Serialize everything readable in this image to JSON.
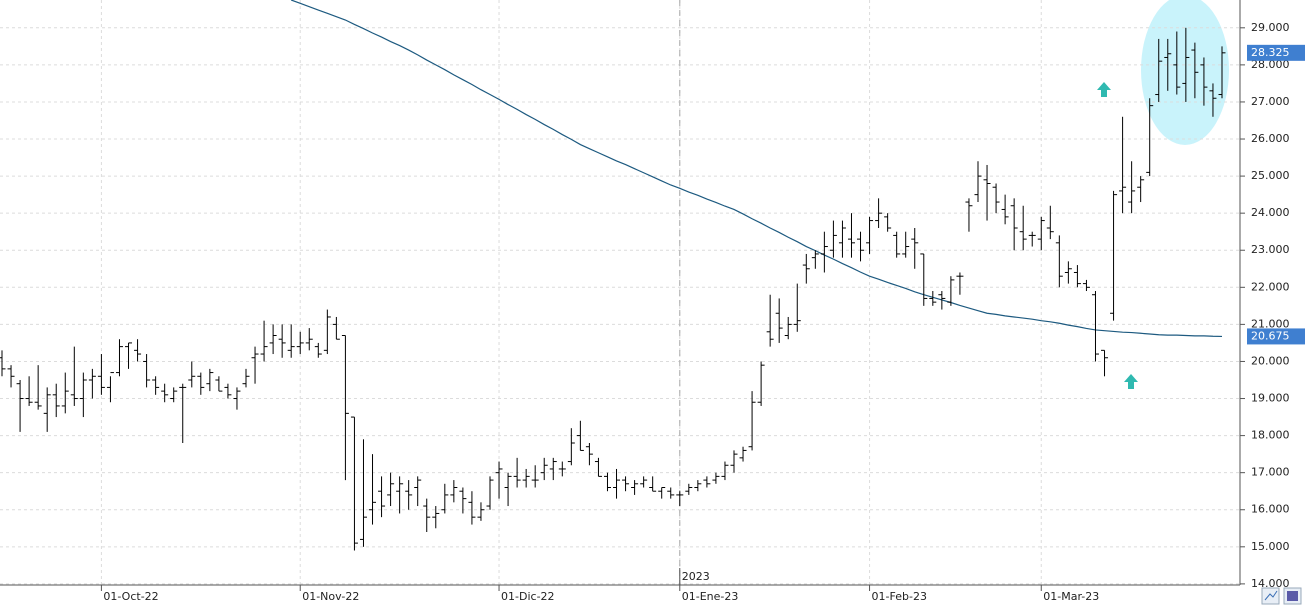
{
  "chart_data": {
    "type": "ohlc",
    "categories": [
      null,
      null,
      null,
      null,
      null,
      null,
      null,
      null,
      null,
      null,
      null,
      "01-Oct-22",
      null,
      null,
      null,
      null,
      null,
      null,
      null,
      null,
      null,
      null,
      null,
      null,
      null,
      null,
      null,
      null,
      null,
      null,
      null,
      null,
      null,
      "01-Nov-22",
      null,
      null,
      null,
      null,
      null,
      null,
      null,
      null,
      null,
      null,
      null,
      null,
      null,
      null,
      null,
      null,
      null,
      null,
      null,
      null,
      null,
      "01-Dic-22",
      null,
      null,
      null,
      null,
      null,
      null,
      null,
      null,
      null,
      null,
      null,
      null,
      null,
      null,
      null,
      null,
      null,
      null,
      null,
      "01-Ene-23",
      null,
      null,
      null,
      null,
      null,
      null,
      null,
      null,
      null,
      null,
      null,
      null,
      null,
      null,
      null,
      null,
      null,
      null,
      null,
      null,
      "01-Feb-23",
      null,
      null,
      null,
      null,
      null,
      null,
      null,
      null,
      null,
      null,
      null,
      null,
      null,
      null,
      null,
      null,
      null,
      null,
      "01-Mar-23",
      null,
      null,
      null,
      null,
      null,
      null,
      null,
      null,
      null,
      null,
      null,
      null,
      null,
      null,
      null,
      null,
      null,
      null,
      null,
      null
    ],
    "year_label": "2023",
    "ohlc": {
      "color": "#000000",
      "open": [
        20.1,
        19.8,
        19.4,
        19.0,
        18.9,
        18.6,
        19.1,
        18.8,
        19.1,
        19.0,
        19.5,
        19.6,
        19.3,
        19.7,
        20.4,
        20.3,
        20.0,
        19.5,
        19.2,
        19.0,
        19.3,
        19.5,
        19.6,
        19.4,
        19.5,
        19.3,
        19.0,
        19.4,
        20.1,
        20.2,
        20.5,
        20.6,
        20.3,
        20.4,
        20.5,
        20.4,
        20.3,
        21.0,
        20.7,
        18.5,
        15.2,
        16.0,
        16.5,
        16.4,
        16.5,
        16.5,
        16.6,
        16.1,
        15.8,
        16.0,
        16.4,
        16.5,
        16.2,
        15.8,
        16.1,
        17.0,
        16.6,
        16.9,
        16.8,
        16.8,
        17.0,
        17.1,
        17.1,
        17.3,
        18.0,
        17.7,
        17.3,
        16.9,
        16.6,
        16.8,
        16.6,
        16.7,
        16.6,
        16.5,
        16.5,
        16.4,
        16.5,
        16.6,
        16.8,
        16.8,
        16.9,
        17.2,
        17.4,
        17.7,
        18.9,
        20.8,
        21.3,
        20.7,
        21.0,
        22.6,
        22.8,
        22.9,
        23.0,
        23.2,
        23.3,
        23.3,
        23.2,
        23.8,
        23.9,
        23.4,
        22.9,
        23.3,
        22.9,
        21.7,
        21.8,
        21.6,
        22.3,
        24.3,
        24.5,
        24.9,
        24.7,
        24.1,
        24.2,
        23.5,
        23.4,
        23.3,
        23.6,
        23.2,
        22.4,
        22.4,
        22.1,
        21.8,
        20.3,
        21.3,
        24.6,
        24.3,
        24.7,
        25.1,
        27.2,
        28.2,
        28.0,
        27.5,
        28.4,
        28.0,
        27.3,
        27.2
      ],
      "high": [
        20.3,
        19.9,
        19.5,
        19.6,
        19.9,
        19.3,
        19.4,
        19.7,
        20.4,
        19.7,
        19.8,
        20.2,
        19.6,
        20.6,
        20.5,
        20.6,
        20.2,
        19.6,
        19.4,
        19.3,
        19.4,
        20.0,
        19.7,
        19.8,
        19.6,
        19.4,
        19.3,
        19.8,
        20.4,
        21.1,
        21.0,
        21.0,
        21.0,
        20.8,
        20.9,
        20.5,
        21.4,
        21.2,
        20.7,
        18.5,
        17.9,
        17.5,
        16.9,
        17.0,
        16.9,
        16.8,
        16.9,
        16.3,
        16.1,
        16.7,
        16.8,
        16.6,
        16.5,
        16.2,
        16.9,
        17.3,
        17.0,
        17.4,
        17.1,
        17.2,
        17.4,
        17.4,
        17.3,
        18.2,
        18.4,
        17.8,
        17.4,
        17.0,
        17.1,
        16.9,
        16.8,
        16.9,
        16.9,
        16.6,
        16.6,
        16.5,
        16.7,
        16.8,
        16.9,
        17.0,
        17.3,
        17.6,
        17.7,
        19.2,
        20.0,
        21.8,
        21.7,
        21.2,
        22.1,
        22.9,
        23.0,
        23.5,
        23.8,
        23.8,
        24.0,
        23.5,
        23.9,
        24.4,
        24.0,
        23.5,
        23.5,
        23.6,
        22.9,
        21.9,
        21.9,
        22.3,
        22.4,
        24.4,
        25.4,
        25.3,
        24.8,
        24.5,
        24.4,
        24.2,
        23.5,
        23.9,
        24.2,
        23.4,
        22.7,
        22.6,
        22.2,
        21.9,
        20.3,
        24.6,
        26.6,
        25.4,
        25.0,
        27.1,
        28.7,
        28.7,
        28.9,
        29.0,
        28.6,
        28.2,
        27.5,
        28.5
      ],
      "low": [
        19.6,
        19.3,
        18.1,
        18.8,
        18.7,
        18.1,
        18.5,
        18.6,
        18.8,
        18.5,
        19.0,
        19.1,
        18.9,
        19.6,
        19.8,
        20.0,
        19.3,
        19.1,
        18.9,
        18.9,
        17.8,
        19.3,
        19.1,
        19.2,
        19.2,
        19.0,
        18.7,
        19.3,
        19.4,
        20.0,
        20.2,
        20.1,
        20.1,
        20.2,
        20.3,
        20.1,
        20.2,
        20.6,
        16.8,
        14.9,
        15.0,
        15.6,
        15.8,
        16.1,
        15.9,
        16.0,
        16.1,
        15.4,
        15.5,
        15.9,
        16.2,
        15.9,
        15.6,
        15.7,
        16.0,
        16.3,
        16.1,
        16.6,
        16.6,
        16.6,
        16.8,
        16.8,
        16.9,
        17.2,
        17.6,
        17.2,
        16.9,
        16.5,
        16.3,
        16.5,
        16.4,
        16.6,
        16.5,
        16.3,
        16.3,
        16.1,
        16.4,
        16.5,
        16.6,
        16.7,
        16.8,
        17.0,
        17.3,
        17.6,
        18.8,
        20.4,
        20.5,
        20.6,
        20.8,
        22.1,
        22.5,
        22.4,
        22.8,
        22.8,
        22.8,
        22.7,
        22.9,
        23.6,
        23.5,
        22.8,
        22.8,
        22.5,
        21.5,
        21.5,
        21.4,
        21.5,
        21.8,
        23.5,
        24.3,
        23.8,
        24.0,
        23.7,
        23.0,
        23.0,
        23.1,
        23.0,
        23.3,
        22.0,
        22.1,
        22.0,
        21.9,
        20.0,
        19.6,
        21.1,
        24.0,
        24.0,
        24.3,
        25.0,
        27.0,
        27.3,
        27.2,
        27.0,
        27.1,
        26.9,
        26.6,
        27.1
      ],
      "close": [
        19.8,
        19.6,
        19.0,
        18.9,
        18.8,
        19.1,
        18.8,
        19.2,
        19.0,
        19.5,
        19.6,
        19.3,
        19.7,
        20.4,
        20.5,
        20.2,
        19.5,
        19.3,
        19.1,
        19.2,
        19.3,
        19.6,
        19.3,
        19.7,
        19.2,
        19.1,
        19.2,
        19.6,
        20.2,
        20.4,
        20.7,
        20.5,
        20.4,
        20.5,
        20.6,
        20.2,
        21.2,
        20.6,
        18.6,
        15.1,
        15.8,
        16.2,
        16.1,
        16.7,
        16.7,
        16.4,
        16.8,
        15.8,
        15.9,
        16.4,
        16.6,
        16.3,
        15.8,
        16.0,
        16.8,
        17.1,
        16.9,
        16.8,
        16.9,
        16.8,
        17.2,
        17.3,
        17.1,
        17.8,
        17.6,
        17.5,
        16.9,
        16.6,
        16.8,
        16.7,
        16.7,
        16.8,
        16.5,
        16.6,
        16.4,
        16.4,
        16.6,
        16.7,
        16.7,
        16.9,
        17.2,
        17.5,
        17.6,
        18.9,
        19.9,
        20.6,
        20.9,
        21.0,
        21.1,
        22.5,
        22.9,
        23.1,
        23.4,
        23.6,
        23.2,
        23.0,
        23.8,
        24.0,
        23.6,
        22.9,
        23.1,
        23.2,
        21.7,
        21.6,
        21.7,
        22.2,
        22.3,
        24.2,
        25.0,
        24.8,
        24.3,
        23.9,
        23.6,
        23.3,
        23.4,
        23.8,
        23.5,
        22.3,
        22.5,
        22.1,
        22.0,
        20.2,
        20.1,
        24.5,
        24.7,
        24.6,
        24.9,
        26.9,
        28.1,
        28.3,
        27.4,
        28.2,
        27.8,
        27.4,
        27.1,
        28.325
      ]
    },
    "moving_average": {
      "color": "#1d5a80",
      "values": [
        null,
        null,
        null,
        null,
        null,
        null,
        null,
        null,
        null,
        null,
        null,
        null,
        null,
        null,
        null,
        null,
        null,
        null,
        null,
        null,
        null,
        null,
        null,
        null,
        null,
        null,
        null,
        null,
        null,
        null,
        null,
        null,
        29.75,
        29.66,
        29.57,
        29.48,
        29.39,
        29.3,
        29.21,
        29.09,
        28.98,
        28.86,
        28.75,
        28.63,
        28.52,
        28.4,
        28.27,
        28.13,
        28.0,
        27.87,
        27.73,
        27.6,
        27.47,
        27.33,
        27.2,
        27.07,
        26.93,
        26.8,
        26.66,
        26.53,
        26.39,
        26.26,
        26.12,
        25.99,
        25.85,
        25.74,
        25.63,
        25.52,
        25.41,
        25.31,
        25.2,
        25.09,
        24.98,
        24.87,
        24.76,
        24.67,
        24.57,
        24.48,
        24.38,
        24.29,
        24.19,
        24.1,
        23.98,
        23.85,
        23.73,
        23.6,
        23.48,
        23.35,
        23.23,
        23.1,
        22.99,
        22.87,
        22.76,
        22.64,
        22.53,
        22.41,
        22.3,
        22.22,
        22.13,
        22.05,
        21.97,
        21.88,
        21.8,
        21.73,
        21.66,
        21.59,
        21.51,
        21.44,
        21.37,
        21.3,
        21.27,
        21.23,
        21.2,
        21.17,
        21.14,
        21.1,
        21.07,
        21.03,
        20.98,
        20.94,
        20.89,
        20.85,
        20.83,
        20.81,
        20.79,
        20.78,
        20.76,
        20.74,
        20.72,
        20.71,
        20.71,
        20.7,
        20.69,
        20.69,
        20.68,
        20.675
      ]
    },
    "ylim": [
      13.97,
      29.75
    ],
    "yticks": [
      {
        "value": 14,
        "label": "14.000"
      },
      {
        "value": 15,
        "label": "15.000"
      },
      {
        "value": 16,
        "label": "16.000"
      },
      {
        "value": 17,
        "label": "17.000"
      },
      {
        "value": 18,
        "label": "18.000"
      },
      {
        "value": 19,
        "label": "19.000"
      },
      {
        "value": 20,
        "label": "20.000"
      },
      {
        "value": 21,
        "label": "21.000"
      },
      {
        "value": 22,
        "label": "22.000"
      },
      {
        "value": 23,
        "label": "23.000"
      },
      {
        "value": 24,
        "label": "24.000"
      },
      {
        "value": 25,
        "label": "25.000"
      },
      {
        "value": 26,
        "label": "26.000"
      },
      {
        "value": 27,
        "label": "27.000"
      },
      {
        "value": 28,
        "label": "28.000"
      },
      {
        "value": 29,
        "label": "29.000"
      }
    ],
    "grid": true,
    "last_value_color": "#3f7fd0"
  }
}
